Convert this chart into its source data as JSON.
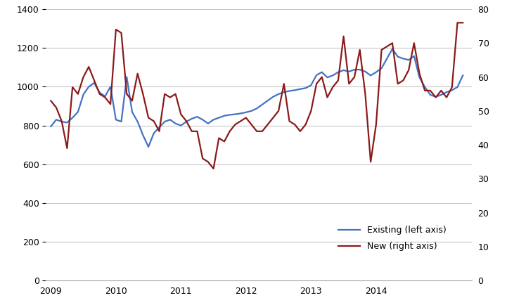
{
  "existing_sales": [
    795,
    830,
    820,
    815,
    840,
    870,
    960,
    1000,
    1020,
    970,
    950,
    1000,
    830,
    820,
    1050,
    870,
    820,
    750,
    690,
    760,
    790,
    820,
    830,
    810,
    800,
    820,
    835,
    845,
    830,
    810,
    830,
    840,
    850,
    855,
    858,
    862,
    868,
    875,
    888,
    908,
    928,
    948,
    962,
    972,
    978,
    982,
    988,
    993,
    1008,
    1060,
    1075,
    1048,
    1058,
    1075,
    1085,
    1078,
    1088,
    1088,
    1078,
    1058,
    1075,
    1095,
    1145,
    1195,
    1155,
    1145,
    1138,
    1158,
    1048,
    998,
    958,
    948,
    958,
    972,
    982,
    998,
    1058
  ],
  "new_sales": [
    53,
    51,
    47,
    39,
    57,
    55,
    60,
    63,
    59,
    55,
    54,
    52,
    74,
    73,
    55,
    53,
    61,
    55,
    48,
    47,
    44,
    55,
    54,
    55,
    49,
    47,
    44,
    44,
    36,
    35,
    33,
    42,
    41,
    44,
    46,
    47,
    48,
    46,
    44,
    44,
    46,
    48,
    50,
    58,
    47,
    46,
    44,
    46,
    50,
    58,
    60,
    54,
    57,
    59,
    72,
    58,
    60,
    68,
    55,
    35,
    46,
    68,
    69,
    70,
    58,
    59,
    62,
    70,
    61,
    56,
    56,
    54,
    56,
    54,
    57,
    76,
    76
  ],
  "n_months": 77,
  "start_year": 2009,
  "x_ticks_years": [
    2009,
    2010,
    2011,
    2012,
    2013,
    2014
  ],
  "left_ylim": [
    0,
    1400
  ],
  "right_ylim": [
    0,
    80
  ],
  "left_yticks": [
    0,
    200,
    400,
    600,
    800,
    1000,
    1200,
    1400
  ],
  "right_yticks": [
    0,
    10,
    20,
    30,
    40,
    50,
    60,
    70,
    80
  ],
  "existing_color": "#4472C4",
  "new_color": "#8B1A1A",
  "legend_existing": "Existing (left axis)",
  "legend_new": "New (right axis)",
  "background_color": "#ffffff",
  "grid_color": "#c8c8c8",
  "line_width": 1.6,
  "figsize": [
    7.21,
    4.34
  ],
  "dpi": 100
}
